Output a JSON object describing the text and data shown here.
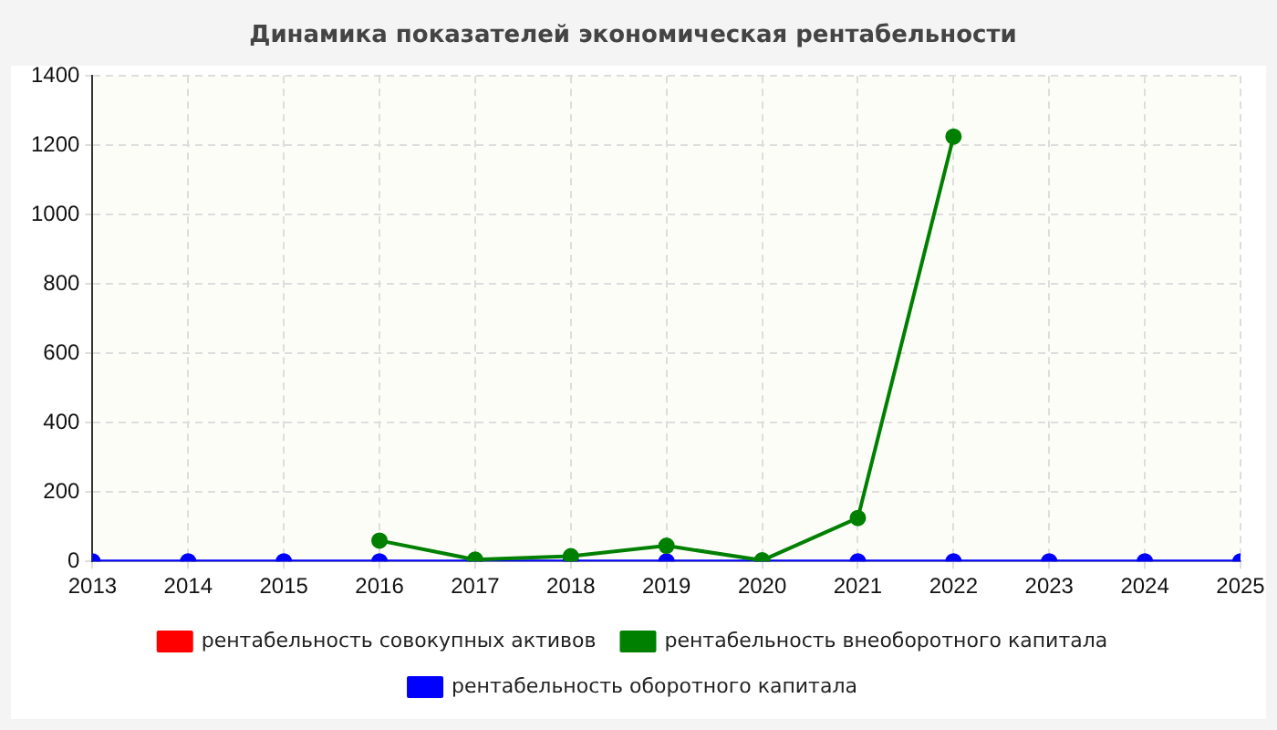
{
  "chart_data": {
    "type": "line",
    "title": "Динамика показателей экономическая рентабельности",
    "x": [
      2013,
      2014,
      2015,
      2016,
      2017,
      2018,
      2019,
      2020,
      2021,
      2022,
      2023,
      2024,
      2025
    ],
    "xlim": [
      2013,
      2025
    ],
    "xticks": [
      2013,
      2014,
      2015,
      2016,
      2017,
      2018,
      2019,
      2020,
      2021,
      2022,
      2023,
      2024,
      2025
    ],
    "ylim": [
      0,
      1400
    ],
    "yticks": [
      0,
      200,
      400,
      600,
      800,
      1000,
      1200,
      1400
    ],
    "grid": true,
    "legend": "bottom",
    "marker": "circle",
    "line_style": "solid",
    "series": [
      {
        "name": "рентабельность совокупных активов",
        "color": "#ff0000",
        "values": [
          null,
          null,
          null,
          null,
          null,
          null,
          null,
          null,
          null,
          null,
          null,
          null,
          null
        ]
      },
      {
        "name": "рентабельность внеоборотного капитала",
        "color": "#008000",
        "values": [
          null,
          null,
          null,
          60,
          5,
          15,
          45,
          3,
          125,
          1225,
          null,
          null,
          null
        ]
      },
      {
        "name": "рентабельность оборотного капитала",
        "color": "#0000ff",
        "values": [
          0,
          0,
          0,
          0,
          0,
          0,
          0,
          0,
          0,
          0,
          0,
          0,
          0
        ]
      }
    ]
  }
}
